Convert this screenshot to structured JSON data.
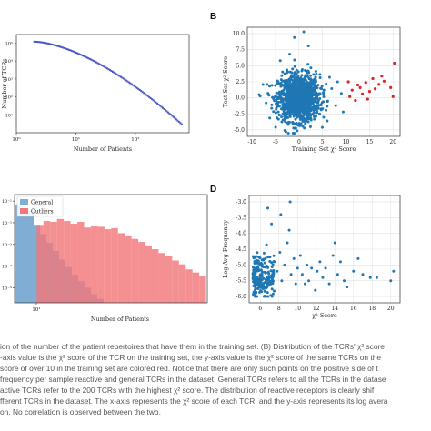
{
  "panel_letters": {
    "b": "B",
    "d": "D"
  },
  "caption_lines": [
    "ion of the number of the patient repertoires that have them in the training set. (B) Distribution of the TCRs' χ² score",
    "-axis value is the χ² score of the TCR on the training set, the y-axis value is the χ² score of the same TCRs on the",
    "score of over 10 in the training set are colored red. Notice that there are only such points on the positive side of t",
    "frequency per sample reactive and general TCRs in the dataset. General TCRs refers to all the TCRs in the datase",
    "active TCRs refer to the 200 TCRs with the highest χ² score. The distribution of reactive receptors is clearly shif",
    "fferent TCRs in the dataset. The x-axis represents the χ² score of each TCR, and the y-axis represents its log avera",
    "on. No correlation is observed between the two."
  ],
  "chart_data": [
    {
      "id": "A",
      "type": "scatter",
      "xlabel": "Number of Patients",
      "ylabel": "Number of TCRs",
      "xscale": "log",
      "yscale": "log",
      "xlim": [
        1,
        800
      ],
      "ylim": [
        1,
        300000
      ],
      "xticks": [
        {
          "v": 1,
          "label": "10⁰"
        },
        {
          "v": 10,
          "label": "10¹"
        },
        {
          "v": 100,
          "label": "10²"
        }
      ],
      "yticks": [
        {
          "v": 10,
          "label": "10¹"
        },
        {
          "v": 100,
          "label": "10²"
        },
        {
          "v": 1000,
          "label": "10³"
        },
        {
          "v": 10000,
          "label": "10⁴"
        },
        {
          "v": 100000,
          "label": "10⁵"
        }
      ],
      "curve": {
        "x_start": 2,
        "x_end": 600,
        "y_start": 120000,
        "y_end": 3
      },
      "color": "#4a57c9",
      "grid": false
    },
    {
      "id": "B",
      "type": "scatter",
      "xlabel": "Training Set χ² Score",
      "ylabel": "Test Set χ² Score",
      "xlim": [
        -11,
        21.5
      ],
      "ylim": [
        -6,
        11
      ],
      "xticks": [
        -10,
        -5,
        0,
        5,
        10,
        15,
        20
      ],
      "yticks": [
        -5.0,
        -2.5,
        0.0,
        2.5,
        5.0,
        7.5,
        10.0
      ],
      "grid": true,
      "cloud": {
        "x_mean": 0,
        "x_sd": 2.2,
        "y_mean": 0,
        "y_sd": 1.8,
        "n": 1300,
        "color": "#1f77b4"
      },
      "extra_blue": [
        [
          -8.5,
          0.5
        ],
        [
          -7,
          -0.8
        ],
        [
          -6.8,
          2.1
        ],
        [
          6.5,
          3.2
        ],
        [
          7.8,
          -1.2
        ],
        [
          8.2,
          2.5
        ],
        [
          9,
          0.7
        ],
        [
          9.4,
          -2.2
        ],
        [
          -4,
          5.8
        ],
        [
          -2,
          6.8
        ],
        [
          1,
          10.3
        ],
        [
          -1,
          9.4
        ],
        [
          2,
          8.1
        ]
      ],
      "red_points": [
        [
          10.5,
          2.5
        ],
        [
          10.8,
          0.2
        ],
        [
          11.3,
          1.2
        ],
        [
          12,
          -0.4
        ],
        [
          13,
          1.6
        ],
        [
          13.5,
          0.6
        ],
        [
          14.2,
          2.4
        ],
        [
          15,
          1.0
        ],
        [
          15.7,
          3.0
        ],
        [
          16.2,
          1.4
        ],
        [
          17,
          2.1
        ],
        [
          17.6,
          3.4
        ],
        [
          18.1,
          2.6
        ],
        [
          19.5,
          1.6
        ],
        [
          20,
          0.2
        ],
        [
          20.3,
          5.4
        ],
        [
          12.5,
          2.0
        ],
        [
          14.6,
          -0.2
        ]
      ],
      "red_color": "#d62728"
    },
    {
      "id": "C",
      "type": "bar",
      "xlabel": "Number of Patients",
      "yscale": "log",
      "ylim": [
        2e-06,
        0.2
      ],
      "yticks": [
        {
          "v": 0.1,
          "label": "10⁻¹"
        },
        {
          "v": 0.01,
          "label": "10⁻²"
        },
        {
          "v": 0.001,
          "label": "10⁻³"
        },
        {
          "v": 0.0001,
          "label": "10⁻⁴"
        },
        {
          "v": 1e-05,
          "label": "10⁻⁵"
        }
      ],
      "xticks": [
        {
          "label": "10¹"
        }
      ],
      "legend": {
        "position": "top-left"
      },
      "series": [
        {
          "name": "General",
          "color": "#7fadd3",
          "values": [
            0.07,
            0.05,
            0.036,
            0.008,
            0.003,
            0.0012,
            0.0005,
            0.0002,
            9e-05,
            4e-05,
            2e-05,
            1e-05,
            5e-06,
            3e-06
          ]
        },
        {
          "name": "Outliers",
          "color": "#f2777a",
          "values": [
            0,
            0,
            0,
            0.008,
            0.012,
            0.011,
            0.015,
            0.012,
            0.009,
            0.011,
            0.006,
            0.0075,
            0.0065,
            0.005,
            0.0056,
            0.0033,
            0.0026,
            0.0018,
            0.0013,
            0.0009,
            0.0006,
            0.0004,
            0.00028,
            0.00018,
            0.00012,
            7e-05,
            5e-05,
            3.5e-05
          ]
        }
      ]
    },
    {
      "id": "D",
      "type": "scatter",
      "xlabel": "χ² Score",
      "ylabel": "Log Avg Frequency",
      "xlim": [
        4.8,
        21
      ],
      "ylim": [
        -6.2,
        -2.8
      ],
      "xticks": [
        6,
        8,
        10,
        12,
        14,
        16,
        18,
        20
      ],
      "yticks": [
        -6.0,
        -5.5,
        -5.0,
        -4.5,
        -4.0,
        -3.5,
        -3.0
      ],
      "grid": true,
      "color": "#1f77b4",
      "dense": {
        "x_min": 5.2,
        "x_max": 7.5,
        "y_mean": -5.4,
        "y_sd": 0.35,
        "n": 220
      },
      "scattered": [
        [
          7.5,
          -4.9
        ],
        [
          7.8,
          -5.2
        ],
        [
          8.1,
          -4.6
        ],
        [
          8.3,
          -5.5
        ],
        [
          8.6,
          -5.0
        ],
        [
          8.9,
          -4.3
        ],
        [
          9.1,
          -3.9
        ],
        [
          9.3,
          -5.3
        ],
        [
          9.6,
          -4.8
        ],
        [
          9.8,
          -5.6
        ],
        [
          10.0,
          -5.1
        ],
        [
          10.3,
          -4.7
        ],
        [
          10.5,
          -5.3
        ],
        [
          10.8,
          -5.6
        ],
        [
          11.0,
          -5.0
        ],
        [
          11.2,
          -5.5
        ],
        [
          11.5,
          -5.1
        ],
        [
          11.9,
          -5.8
        ],
        [
          12.1,
          -5.2
        ],
        [
          12.4,
          -4.9
        ],
        [
          12.7,
          -5.4
        ],
        [
          13.0,
          -5.1
        ],
        [
          13.4,
          -5.6
        ],
        [
          13.8,
          -4.7
        ],
        [
          14.0,
          -4.3
        ],
        [
          14.3,
          -5.3
        ],
        [
          14.6,
          -4.9
        ],
        [
          15.0,
          -5.5
        ],
        [
          15.3,
          -5.7
        ],
        [
          16.0,
          -5.2
        ],
        [
          16.5,
          -4.8
        ],
        [
          17.0,
          -5.3
        ],
        [
          17.8,
          -5.4
        ],
        [
          18.5,
          -5.4
        ],
        [
          20.0,
          -5.5
        ],
        [
          20.3,
          -5.2
        ],
        [
          7.2,
          -3.7
        ],
        [
          8.2,
          -3.4
        ],
        [
          6.8,
          -3.2
        ],
        [
          9.2,
          -3.0
        ]
      ]
    }
  ]
}
